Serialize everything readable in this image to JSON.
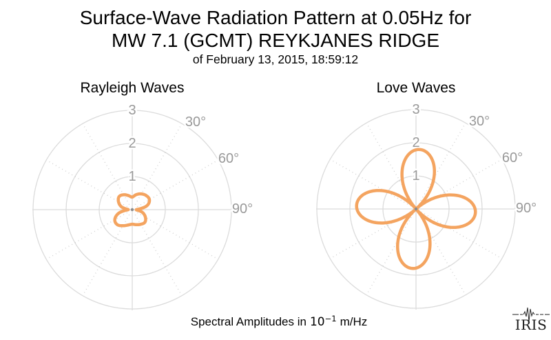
{
  "header": {
    "title_line1": "Surface-Wave Radiation Pattern at 0.05Hz for",
    "title_line2": "MW 7.1 (GCMT) REYKJANES RIDGE",
    "subtitle": "of February 13, 2015, 18:59:12"
  },
  "footer": {
    "label_prefix": "Spectral Amplitudes in",
    "power_base": "10",
    "power_exponent": "−1",
    "label_suffix": "m/Hz"
  },
  "branding": {
    "logo_text": "IRIS",
    "logo_icon": "seismogram-trace-icon"
  },
  "colors": {
    "pattern_stroke": "#F4A460",
    "grid_solid": "#DBDBDB",
    "grid_dotted": "#C9C9C9",
    "axis_label": "#999999",
    "center_dot": "#8B8B8B",
    "title_text": "#000000",
    "background": "#FFFFFF"
  },
  "chart_data": [
    {
      "type": "line",
      "subtype": "polar-radiation-pattern",
      "title": "Rayleigh Waves",
      "radial_axis": {
        "ticks": [
          1,
          2,
          3
        ],
        "max": 3
      },
      "angular_axis": {
        "labels": [
          {
            "text": "30°",
            "deg": 30
          },
          {
            "text": "60°",
            "deg": 60
          },
          {
            "text": "90°",
            "deg": 90
          }
        ],
        "solid_spokes_deg": [
          0,
          90,
          180,
          270
        ],
        "dotted_spokes_deg": [
          30,
          60,
          120,
          150,
          210,
          240,
          300,
          330
        ]
      },
      "series": {
        "name": "rayleigh-radiation",
        "azimuth_deg": [
          0,
          15,
          30,
          45,
          60,
          75,
          90,
          105,
          120,
          135,
          150,
          165,
          180,
          195,
          210,
          225,
          240,
          255,
          270,
          285,
          300,
          315,
          330,
          345
        ],
        "amplitude": [
          0.38,
          0.47,
          0.55,
          0.6,
          0.6,
          0.46,
          0.12,
          0.32,
          0.46,
          0.54,
          0.51,
          0.47,
          0.44,
          0.48,
          0.56,
          0.64,
          0.61,
          0.43,
          0.12,
          0.34,
          0.48,
          0.56,
          0.52,
          0.44
        ]
      }
    },
    {
      "type": "line",
      "subtype": "polar-radiation-pattern",
      "title": "Love Waves",
      "radial_axis": {
        "ticks": [
          1,
          2,
          3
        ],
        "max": 3
      },
      "angular_axis": {
        "labels": [
          {
            "text": "30°",
            "deg": 30
          },
          {
            "text": "60°",
            "deg": 60
          },
          {
            "text": "90°",
            "deg": 90
          }
        ],
        "solid_spokes_deg": [
          0,
          90,
          180,
          270
        ],
        "dotted_spokes_deg": [
          30,
          60,
          120,
          150,
          210,
          240,
          300,
          330
        ]
      },
      "series": {
        "name": "love-radiation",
        "model": {
          "form": "A·|cos(2(θ−θ0))|",
          "A": 1.8,
          "theta0_deg": 3.5,
          "lobes": 4
        },
        "azimuth_deg": [
          0,
          15,
          30,
          45,
          60,
          75,
          90,
          105,
          120,
          135,
          150,
          165,
          180,
          195,
          210,
          225,
          240,
          255,
          270,
          285,
          300,
          315,
          330,
          345
        ],
        "amplitude": [
          1.79,
          1.66,
          1.08,
          0.22,
          0.7,
          1.44,
          1.79,
          1.66,
          1.08,
          0.22,
          0.7,
          1.44,
          1.79,
          1.66,
          1.08,
          0.22,
          0.7,
          1.44,
          1.79,
          1.66,
          1.08,
          0.22,
          0.7,
          1.44
        ]
      }
    }
  ]
}
